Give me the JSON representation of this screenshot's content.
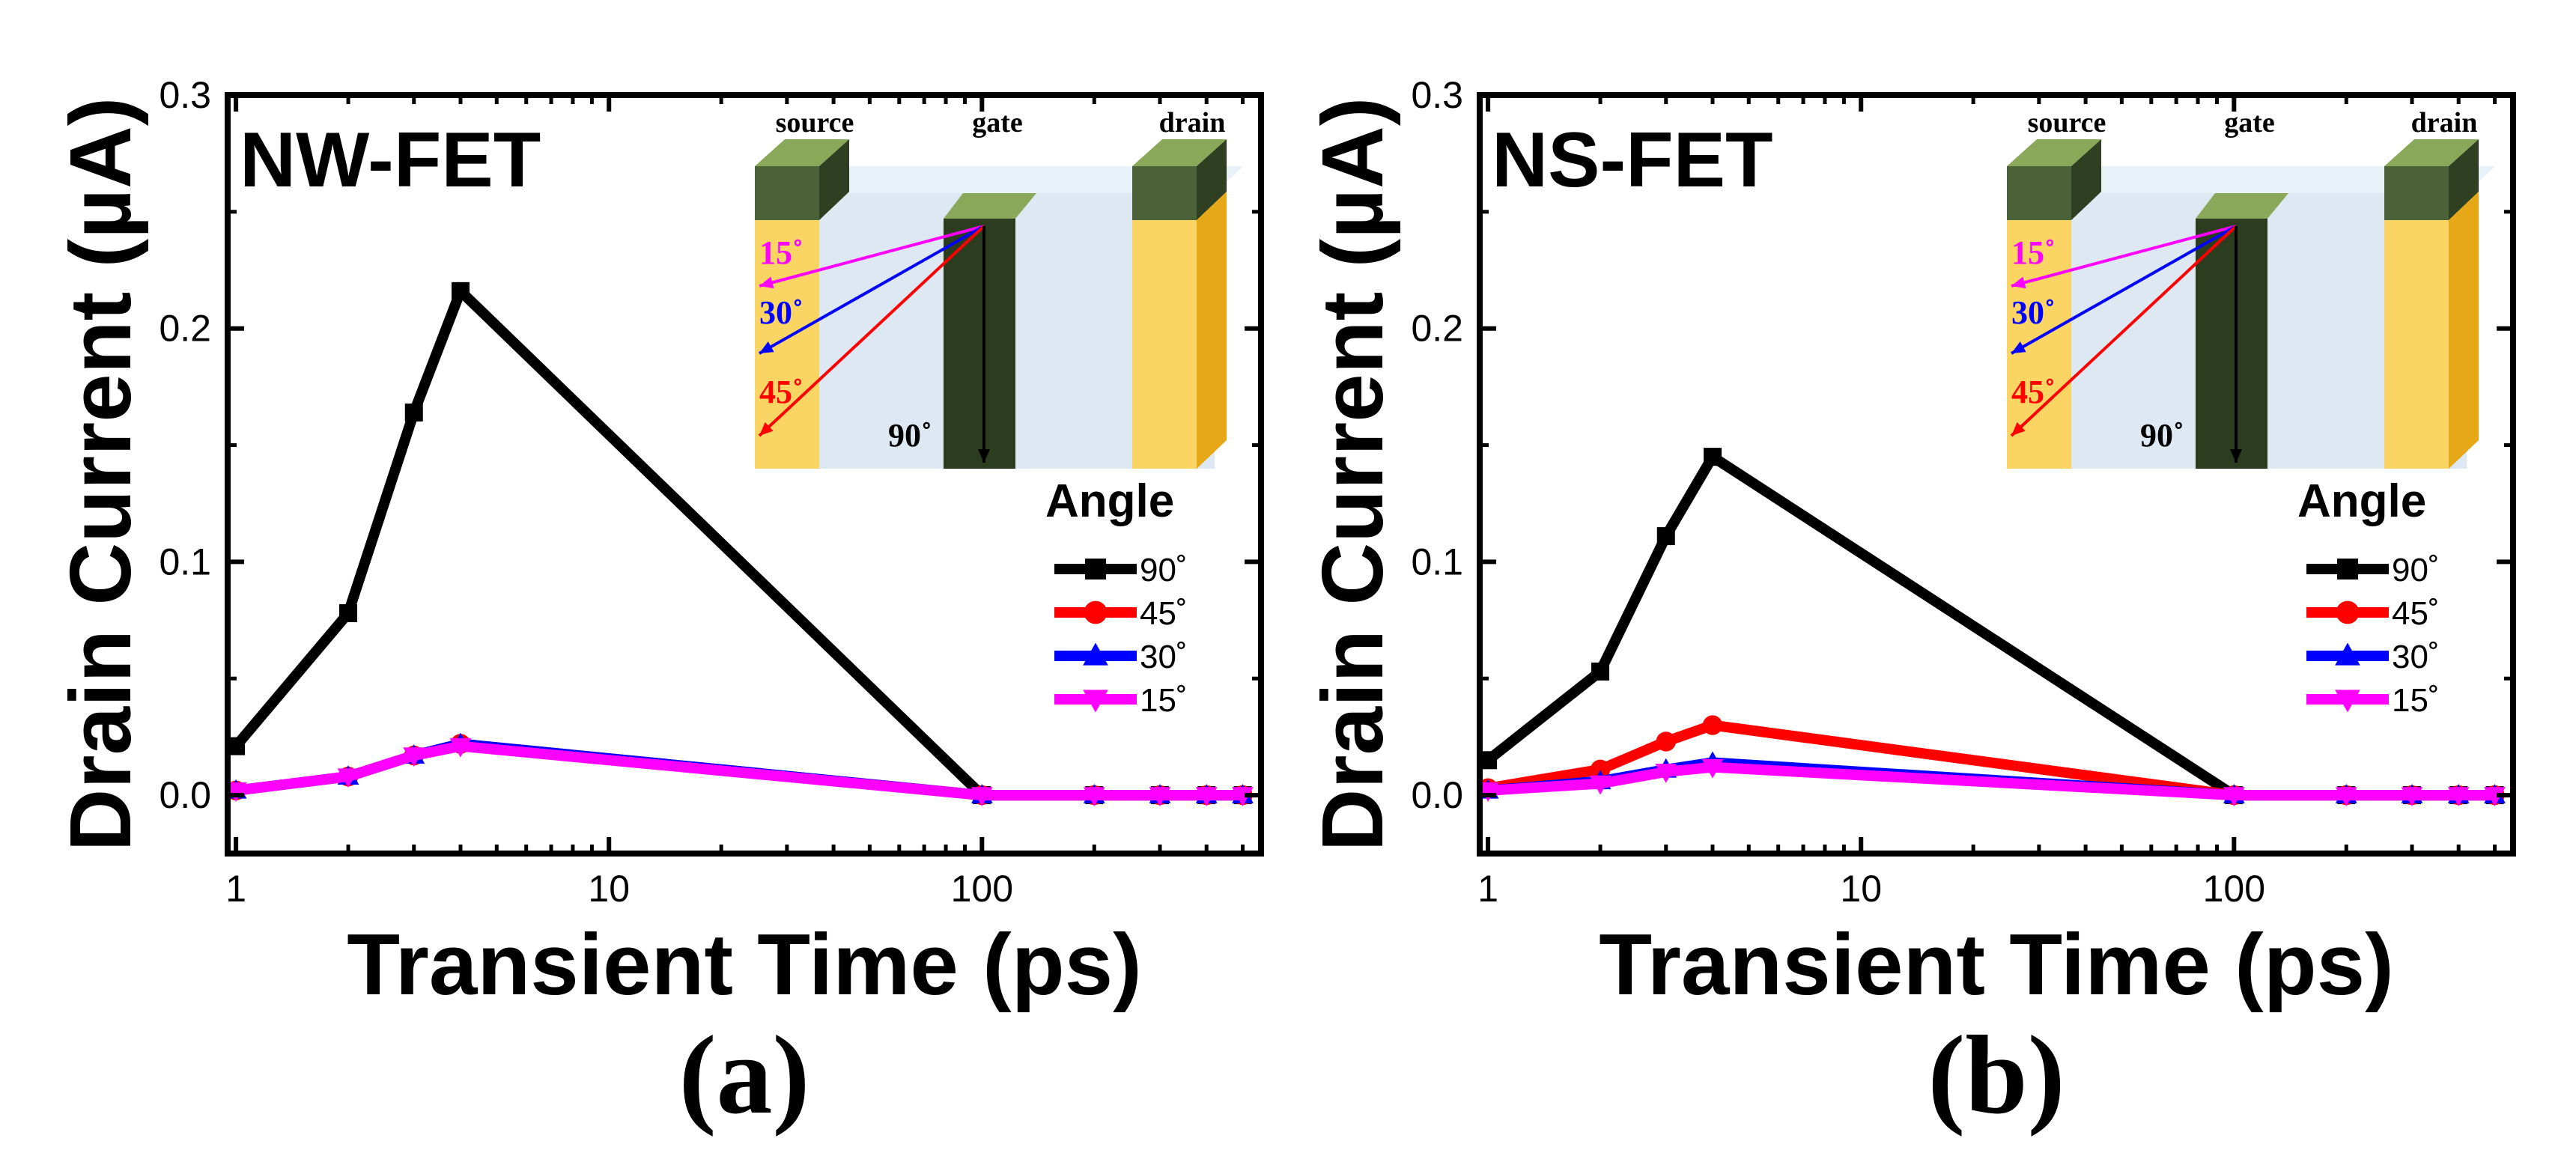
{
  "colors": {
    "s90": "#000000",
    "s45": "#ff0000",
    "s30": "#0000ff",
    "s15": "#ff00ff",
    "metal": "#4b6138",
    "metal_top": "#8aa85a",
    "metal_side": "#2f3f22",
    "gate_bar": "#2c3d1f",
    "channel": "#dde8f3",
    "yellow": "#fbd564",
    "yellow_side": "#e6a817"
  },
  "chart_data": [
    {
      "type": "line",
      "panel_label": "(a)",
      "title": "NW-FET",
      "xlabel": "Transient Time (ps)",
      "ylabel": "Drain Current (µA)",
      "xscale": "log",
      "xlim": [
        0.95,
        560
      ],
      "ylim": [
        -0.025,
        0.3
      ],
      "xticks": [
        1,
        10,
        100
      ],
      "xtick_labels": [
        "1",
        "10",
        "100"
      ],
      "yticks": [
        0.0,
        0.1,
        0.2,
        0.3
      ],
      "ytick_labels": [
        "0.0",
        "0.1",
        "0.2",
        "0.3"
      ],
      "legend_title": "Angle",
      "legend_position": "right",
      "x": [
        1,
        2,
        3,
        4,
        100,
        200,
        300,
        400,
        500
      ],
      "series": [
        {
          "name": "90˚",
          "marker": "square",
          "values": [
            0.021,
            0.078,
            0.164,
            0.216,
            0.0,
            0.0,
            0.0,
            0.0,
            0.0
          ]
        },
        {
          "name": "45˚",
          "marker": "circle",
          "values": [
            0.002,
            0.008,
            0.017,
            0.022,
            0.0,
            0.0,
            0.0,
            0.0,
            0.0
          ]
        },
        {
          "name": "30˚",
          "marker": "triangle",
          "values": [
            0.002,
            0.008,
            0.017,
            0.022,
            0.0,
            0.0,
            0.0,
            0.0,
            0.0
          ]
        },
        {
          "name": "15˚",
          "marker": "triangle-down",
          "values": [
            0.002,
            0.008,
            0.017,
            0.021,
            0.0,
            0.0,
            0.0,
            0.0,
            0.0
          ]
        }
      ],
      "inset": {
        "source": "source",
        "gate": "gate",
        "drain": "drain",
        "angles": [
          "15˚",
          "30˚",
          "45˚",
          "90˚"
        ]
      }
    },
    {
      "type": "line",
      "panel_label": "(b)",
      "title": "NS-FET",
      "xlabel": "Transient Time (ps)",
      "ylabel": "Drain Current (µA)",
      "xscale": "log",
      "xlim": [
        0.95,
        560
      ],
      "ylim": [
        -0.025,
        0.3
      ],
      "xticks": [
        1,
        10,
        100
      ],
      "xtick_labels": [
        "1",
        "10",
        "100"
      ],
      "yticks": [
        0.0,
        0.1,
        0.2,
        0.3
      ],
      "ytick_labels": [
        "0.0",
        "0.1",
        "0.2",
        "0.3"
      ],
      "legend_title": "Angle",
      "legend_position": "right",
      "x": [
        1,
        2,
        3,
        4,
        100,
        200,
        300,
        400,
        500
      ],
      "series": [
        {
          "name": "90˚",
          "marker": "square",
          "values": [
            0.015,
            0.053,
            0.111,
            0.145,
            0.0,
            0.0,
            0.0,
            0.0,
            0.0
          ]
        },
        {
          "name": "45˚",
          "marker": "circle",
          "values": [
            0.003,
            0.011,
            0.023,
            0.03,
            0.0,
            0.0,
            0.0,
            0.0,
            0.0
          ]
        },
        {
          "name": "30˚",
          "marker": "triangle",
          "values": [
            0.002,
            0.006,
            0.011,
            0.014,
            0.0,
            0.0,
            0.0,
            0.0,
            0.0
          ]
        },
        {
          "name": "15˚",
          "marker": "triangle-down",
          "values": [
            0.002,
            0.005,
            0.01,
            0.012,
            0.0,
            0.0,
            0.0,
            0.0,
            0.0
          ]
        }
      ],
      "inset": {
        "source": "source",
        "gate": "gate",
        "drain": "drain",
        "angles": [
          "15˚",
          "30˚",
          "45˚",
          "90˚"
        ]
      }
    }
  ]
}
